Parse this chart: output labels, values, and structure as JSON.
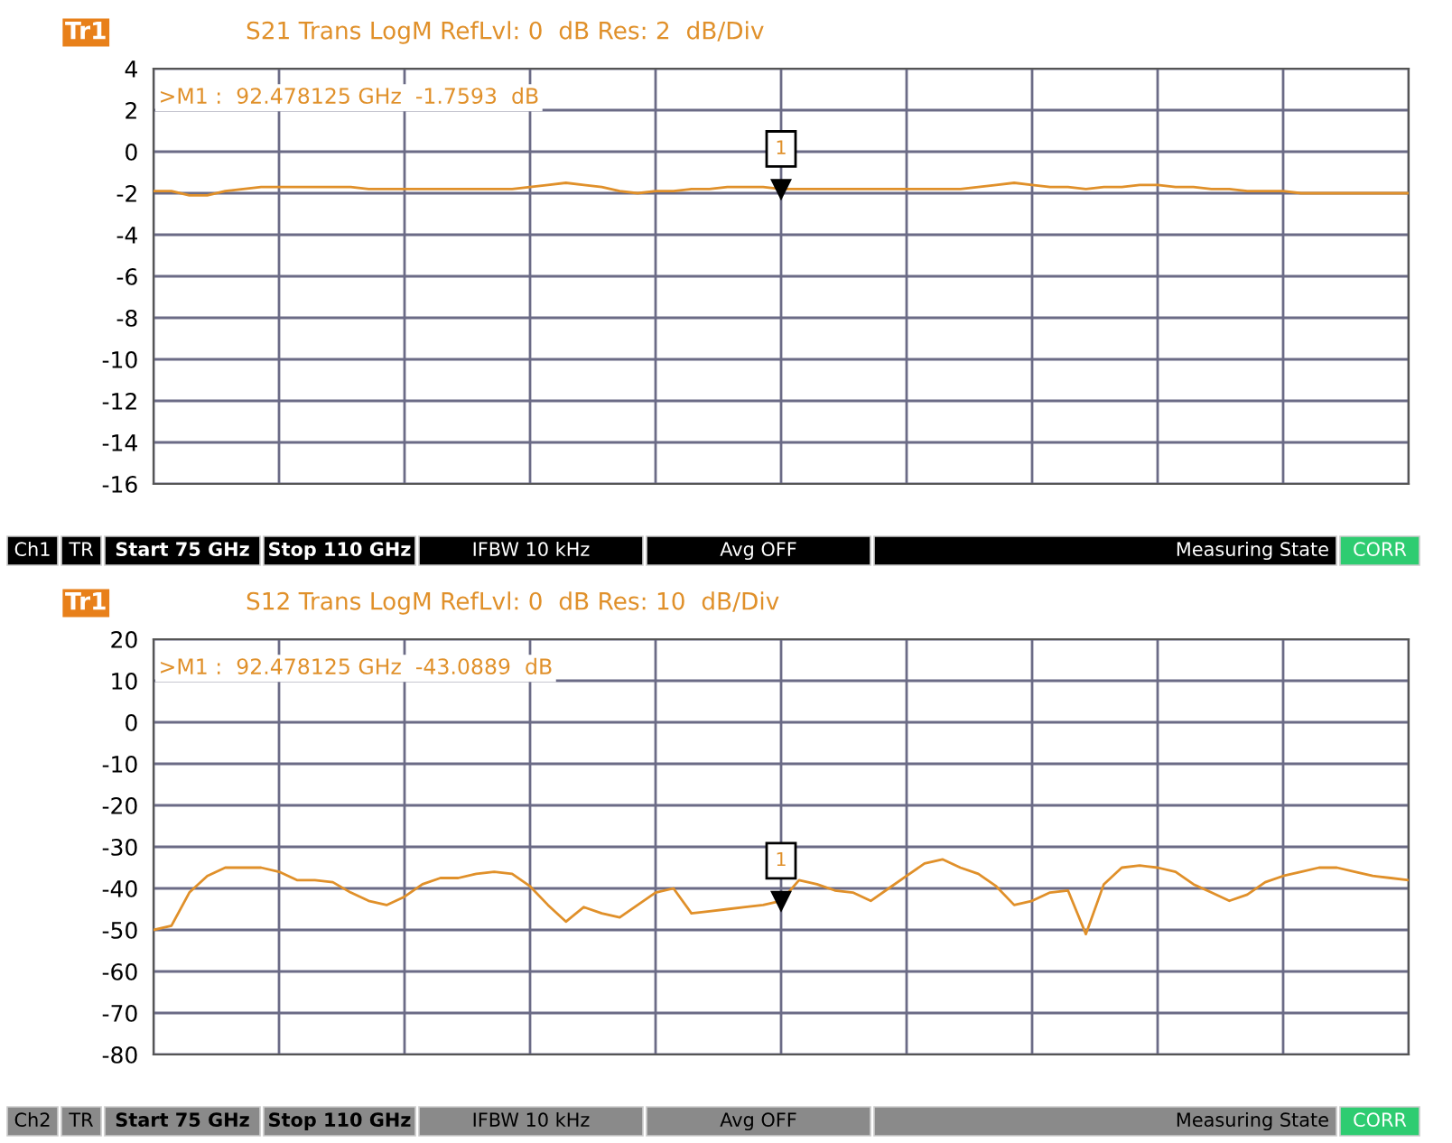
{
  "chart_data": [
    {
      "type": "line",
      "title": "S21 Trans LogM RefLvl: 0  dB Res: 2  dB/Div",
      "annotations": [
        "Tr1",
        ">M1 :  92.478125 GHz  -1.7593  dB",
        "1",
        "Ch1",
        "TR",
        "Start 75 GHz",
        "Stop 110 GHz",
        "IFBW 10 kHz",
        "Avg OFF",
        "Measuring State",
        "CORR"
      ],
      "categories": [
        null,
        null,
        null,
        null,
        null,
        null,
        null,
        null,
        null,
        null,
        null,
        null,
        null,
        null,
        null,
        null,
        null,
        null,
        null,
        null,
        null,
        null,
        null,
        null,
        null,
        null,
        null,
        null,
        null,
        null,
        null,
        null,
        null,
        null,
        null,
        null,
        null,
        null,
        null,
        null,
        null,
        null,
        null,
        null,
        null,
        null,
        null,
        null,
        null,
        null,
        null,
        null,
        null,
        null,
        null,
        null,
        null,
        null,
        null,
        null,
        null,
        null,
        null,
        null,
        null,
        null,
        null,
        null,
        null,
        null,
        null
      ],
      "series": [
        {
          "color": "#e0902a",
          "values": [
            -1.9,
            -1.9,
            -2.1,
            -2.1,
            -1.9,
            -1.8,
            -1.7,
            -1.7,
            -1.7,
            -1.7,
            -1.7,
            -1.7,
            -1.8,
            -1.8,
            -1.8,
            -1.8,
            -1.8,
            -1.8,
            -1.8,
            -1.8,
            -1.8,
            -1.7,
            -1.6,
            -1.5,
            -1.6,
            -1.7,
            -1.9,
            -2.0,
            -1.9,
            -1.9,
            -1.8,
            -1.8,
            -1.7,
            -1.7,
            -1.7,
            -1.8,
            -1.8,
            -1.8,
            -1.8,
            -1.8,
            -1.8,
            -1.8,
            -1.8,
            -1.8,
            -1.8,
            -1.8,
            -1.7,
            -1.6,
            -1.5,
            -1.6,
            -1.7,
            -1.7,
            -1.8,
            -1.7,
            -1.7,
            -1.6,
            -1.6,
            -1.7,
            -1.7,
            -1.8,
            -1.8,
            -1.9,
            -1.9,
            -1.9,
            -2.0,
            -2.0,
            -2.0,
            -2.0,
            -2.0,
            -2.0,
            -2.0
          ]
        }
      ],
      "ylim": [
        -16,
        4
      ],
      "yticks": [
        -16,
        -14,
        -12,
        -10,
        -8,
        -6,
        -4,
        -2,
        0,
        2,
        4
      ],
      "grid": true,
      "tick_labels": "y"
    },
    {
      "type": "line",
      "title": "S12 Trans LogM RefLvl: 0  dB Res: 10  dB/Div",
      "annotations": [
        "Tr1",
        ">M1 :  92.478125 GHz  -43.0889  dB",
        "1",
        "Ch2",
        "TR",
        "Start 75 GHz",
        "Stop 110 GHz",
        "IFBW 10 kHz",
        "Avg OFF",
        "Measuring State",
        "CORR"
      ],
      "categories": [
        null,
        null,
        null,
        null,
        null,
        null,
        null,
        null,
        null,
        null,
        null,
        null,
        null,
        null,
        null,
        null,
        null,
        null,
        null,
        null,
        null,
        null,
        null,
        null,
        null,
        null,
        null,
        null,
        null,
        null,
        null,
        null,
        null,
        null,
        null,
        null,
        null,
        null,
        null,
        null,
        null,
        null,
        null,
        null,
        null,
        null,
        null,
        null,
        null,
        null,
        null,
        null,
        null,
        null,
        null,
        null,
        null,
        null,
        null,
        null,
        null,
        null,
        null,
        null,
        null,
        null,
        null,
        null,
        null,
        null,
        null
      ],
      "series": [
        {
          "color": "#e0902a",
          "values": [
            -50,
            -49,
            -41,
            -37,
            -35,
            -35,
            -35,
            -36,
            -38,
            -38,
            -38.5,
            -41,
            -43,
            -44,
            -42,
            -39,
            -37.5,
            -37.5,
            -36.5,
            -36,
            -36.5,
            -39.5,
            -44,
            -48,
            -44.5,
            -46,
            -47,
            -44,
            -41,
            -40,
            -46,
            -45.5,
            -45,
            -44.5,
            -44,
            -43,
            -38,
            -39,
            -40.5,
            -41,
            -43,
            -40,
            -37,
            -34,
            -33,
            -35,
            -36.5,
            -39.5,
            -44,
            -43,
            -41,
            -40.5,
            -51,
            -39,
            -35,
            -34.5,
            -35,
            -36,
            -39,
            -41,
            -43,
            -41.5,
            -38.5,
            -37,
            -36,
            -35,
            -35,
            -36,
            -37,
            -37.5,
            -38
          ]
        }
      ],
      "ylim": [
        -80,
        20
      ],
      "yticks": [
        -80,
        -70,
        -60,
        -50,
        -40,
        -30,
        -20,
        -10,
        0,
        10,
        20
      ],
      "grid": true,
      "tick_labels": "y"
    }
  ]
}
